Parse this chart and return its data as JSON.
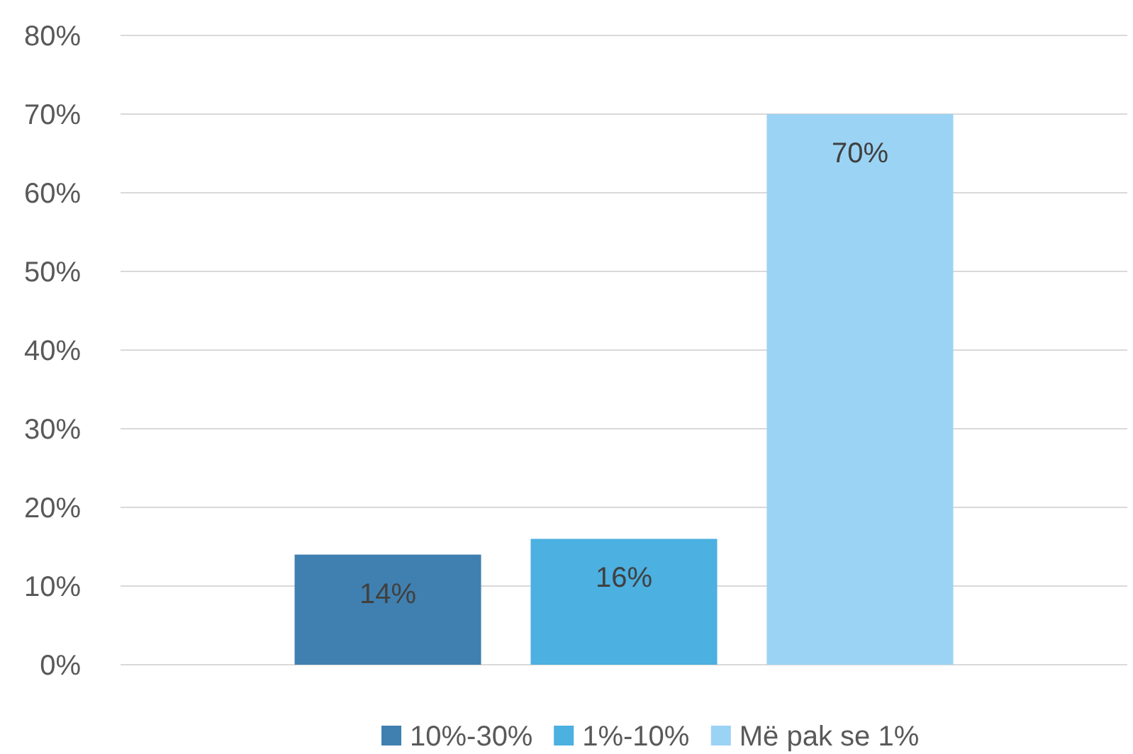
{
  "chart_data": {
    "type": "bar",
    "categories": [
      null
    ],
    "series": [
      {
        "name": "10%-30%",
        "color": "#4080b0",
        "values": [
          14
        ],
        "value_labels": [
          "14%"
        ]
      },
      {
        "name": "1%-10%",
        "color": "#4cb0e0",
        "values": [
          16
        ],
        "value_labels": [
          "16%"
        ]
      },
      {
        "name": "Më pak se 1%",
        "color": "#9bd3f4",
        "values": [
          70
        ],
        "value_labels": [
          "70%"
        ]
      }
    ],
    "ylim": [
      0,
      80
    ],
    "yticks": [
      {
        "value": 0,
        "label": "0%"
      },
      {
        "value": 10,
        "label": "10%"
      },
      {
        "value": 20,
        "label": "20%"
      },
      {
        "value": 30,
        "label": "30%"
      },
      {
        "value": 40,
        "label": "40%"
      },
      {
        "value": 50,
        "label": "50%"
      },
      {
        "value": 60,
        "label": "60%"
      },
      {
        "value": 70,
        "label": "70%"
      },
      {
        "value": 80,
        "label": "80%"
      }
    ],
    "grid": "y",
    "legend": "bottom"
  }
}
